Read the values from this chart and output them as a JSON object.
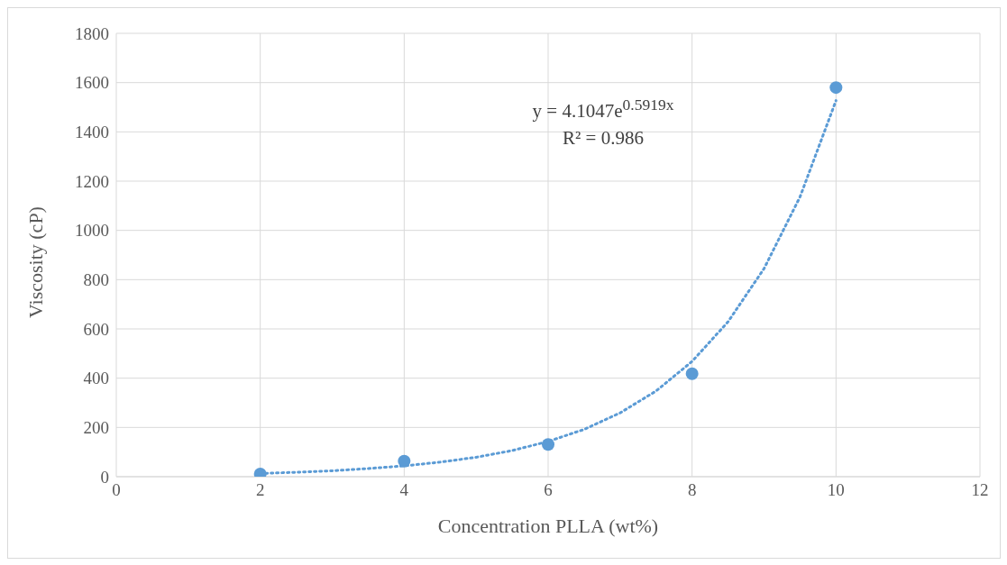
{
  "chart_data": {
    "type": "scatter",
    "xlabel": "Concentration PLLA (wt%)",
    "ylabel": "Viscosity (cP)",
    "xlim": [
      0,
      12
    ],
    "xticks": [
      0,
      2,
      4,
      6,
      8,
      10,
      12
    ],
    "ylim": [
      0,
      1800
    ],
    "yticks": [
      0,
      200,
      400,
      600,
      800,
      1000,
      1200,
      1400,
      1600,
      1800
    ],
    "grid": true,
    "legend": false,
    "marker": "circle",
    "series": [
      {
        "color": "#5b9bd5",
        "x": [
          2,
          4,
          6,
          8,
          10
        ],
        "values": [
          11,
          63,
          131,
          418,
          1580
        ]
      },
      {
        "type": "line",
        "color": "#5b9bd5",
        "line_style": "dotted",
        "marker": "none",
        "x": [
          2,
          2.5,
          3,
          3.5,
          4,
          4.5,
          5,
          5.5,
          6,
          6.5,
          7,
          7.5,
          8,
          8.5,
          9,
          9.5,
          10
        ],
        "values": [
          13,
          18,
          24,
          33,
          44,
          59,
          79,
          106,
          143,
          192,
          259,
          348,
          468,
          629,
          845,
          1136,
          1527
        ]
      }
    ],
    "annotations": [
      "y = 4.1047e$^{0.5919x}$",
      "R² = 0.986"
    ]
  }
}
